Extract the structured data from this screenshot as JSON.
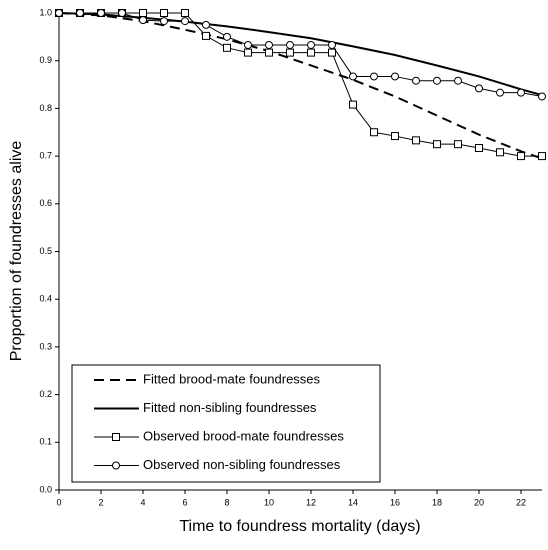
{
  "chart_data": {
    "type": "line",
    "xlabel": "Time to foundress mortality (days)",
    "ylabel": "Proportion of foundresses alive",
    "xlim": [
      0,
      23
    ],
    "xticks": [
      0,
      2,
      4,
      6,
      8,
      10,
      12,
      14,
      16,
      18,
      20,
      22
    ],
    "ylim": [
      0,
      1
    ],
    "yticks": [
      {
        "value": 0,
        "label": "0.0"
      },
      0.1,
      0.2,
      0.3,
      0.4,
      0.5,
      0.6,
      0.7,
      0.8,
      0.9,
      {
        "value": 1,
        "label": "1.0"
      }
    ],
    "grid": false,
    "legend": "lower left",
    "series": [
      {
        "name": "Fitted brood-mate foundresses",
        "color": "#000000",
        "style": "dashed",
        "marker": "none",
        "x": [
          0,
          2,
          4,
          6,
          8,
          10,
          12,
          14,
          16,
          18,
          20,
          22,
          23
        ],
        "values": [
          1.0,
          0.995,
          0.983,
          0.965,
          0.945,
          0.92,
          0.89,
          0.86,
          0.825,
          0.785,
          0.745,
          0.71,
          0.695
        ]
      },
      {
        "name": "Fitted non-sibling foundresses",
        "color": "#000000",
        "style": "solid",
        "marker": "none",
        "x": [
          0,
          2,
          4,
          6,
          8,
          10,
          12,
          14,
          16,
          18,
          20,
          22,
          23
        ],
        "values": [
          1.0,
          0.997,
          0.99,
          0.982,
          0.972,
          0.96,
          0.947,
          0.93,
          0.912,
          0.89,
          0.867,
          0.84,
          0.828
        ]
      },
      {
        "name": "Observed brood-mate foundresses",
        "color": "#000000",
        "style": "thin",
        "marker": "square",
        "x": [
          0,
          1,
          2,
          3,
          4,
          5,
          6,
          7,
          8,
          9,
          10,
          11,
          12,
          13,
          14,
          15,
          16,
          17,
          18,
          19,
          20,
          21,
          22,
          23
        ],
        "values": [
          1.0,
          1.0,
          1.0,
          1.0,
          1.0,
          1.0,
          1.0,
          0.952,
          0.927,
          0.917,
          0.917,
          0.917,
          0.917,
          0.917,
          0.808,
          0.75,
          0.742,
          0.733,
          0.725,
          0.725,
          0.717,
          0.708,
          0.7,
          0.7
        ]
      },
      {
        "name": "Observed non-sibling foundresses",
        "color": "#000000",
        "style": "thin",
        "marker": "circle",
        "x": [
          0,
          1,
          2,
          3,
          4,
          5,
          6,
          7,
          8,
          9,
          10,
          11,
          12,
          13,
          14,
          15,
          16,
          17,
          18,
          19,
          20,
          21,
          22,
          23
        ],
        "values": [
          1.0,
          1.0,
          1.0,
          1.0,
          0.985,
          0.983,
          0.983,
          0.975,
          0.95,
          0.933,
          0.933,
          0.933,
          0.933,
          0.933,
          0.867,
          0.867,
          0.867,
          0.858,
          0.858,
          0.858,
          0.842,
          0.833,
          0.833,
          0.825
        ]
      }
    ]
  }
}
